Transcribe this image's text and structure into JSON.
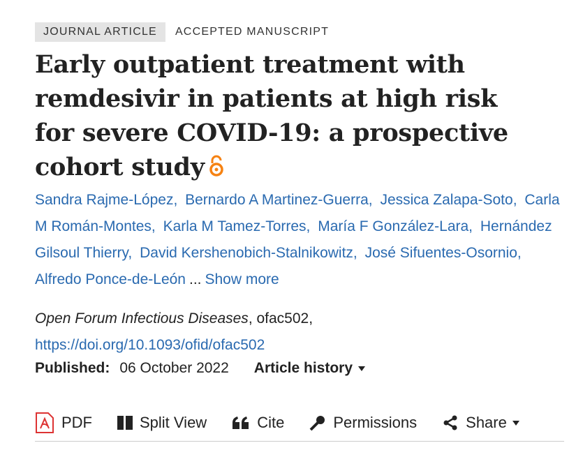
{
  "header": {
    "badge": "JOURNAL ARTICLE",
    "status": "ACCEPTED MANUSCRIPT",
    "title": "Early outpatient treatment with remdesivir in patients at high risk for severe COVID-19: a prospective cohort study"
  },
  "authors": [
    "Sandra Rajme-López,",
    "Bernardo A Martinez-Guerra,",
    "Jessica Zalapa-Soto,",
    "Carla M Román-Montes,",
    "Karla M Tamez-Torres,",
    "María F González-Lara,",
    "Hernández Gilsoul Thierry,",
    "David Kershenobich-Stalnikowitz,",
    "José Sifuentes-Osornio,",
    "Alfredo Ponce-de-León"
  ],
  "authors_more": {
    "ellipsis": "...",
    "link": "Show more"
  },
  "citation": {
    "journal": "Open Forum Infectious Diseases",
    "article_id": ", ofac502,",
    "doi": "https://doi.org/10.1093/ofid/ofac502",
    "published_label": "Published:",
    "published_date": "06 October 2022",
    "history": "Article history"
  },
  "toolbar": [
    "PDF",
    "Split View",
    "Cite",
    "Permissions",
    "Share"
  ]
}
